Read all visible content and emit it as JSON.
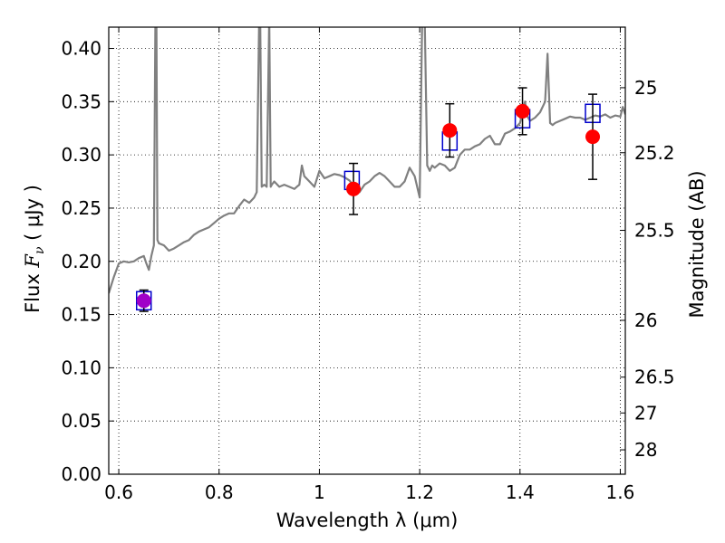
{
  "chart_data": {
    "type": "scatter",
    "xlabel": "Wavelength  λ (μm)",
    "ylabel": "Flux  F_ν  ( μJy )",
    "ylabel_parts": {
      "prefix": "Flux  ",
      "symbol": "F",
      "subscript": "ν",
      "unit": "( μJy )"
    },
    "y2label": "Magnitude (AB)",
    "xlim": [
      0.58,
      1.61
    ],
    "ylim": [
      0.0,
      0.42
    ],
    "grid": true,
    "grid_style": "dotted",
    "x_ticks": [
      {
        "value": 0.6,
        "label": "0.6"
      },
      {
        "value": 0.8,
        "label": "0.8"
      },
      {
        "value": 1.0,
        "label": "1"
      },
      {
        "value": 1.2,
        "label": "1.2"
      },
      {
        "value": 1.4,
        "label": "1.4"
      },
      {
        "value": 1.6,
        "label": "1.6"
      }
    ],
    "y_ticks": [
      {
        "value": 0.0,
        "label": "0.00"
      },
      {
        "value": 0.05,
        "label": "0.05"
      },
      {
        "value": 0.1,
        "label": "0.10"
      },
      {
        "value": 0.15,
        "label": "0.15"
      },
      {
        "value": 0.2,
        "label": "0.20"
      },
      {
        "value": 0.25,
        "label": "0.25"
      },
      {
        "value": 0.3,
        "label": "0.30"
      },
      {
        "value": 0.35,
        "label": "0.35"
      },
      {
        "value": 0.4,
        "label": "0.40"
      }
    ],
    "y2_ticks": [
      {
        "value": 25,
        "label": "25"
      },
      {
        "value": 25.2,
        "label": "25.2"
      },
      {
        "value": 25.5,
        "label": "25.5"
      },
      {
        "value": 26,
        "label": "26"
      },
      {
        "value": 26.5,
        "label": "26.5"
      },
      {
        "value": 27,
        "label": "27"
      },
      {
        "value": 28,
        "label": "28"
      }
    ],
    "series": [
      {
        "kind": "line",
        "color": "#808080",
        "x": [
          0.58,
          0.59,
          0.6,
          0.61,
          0.62,
          0.63,
          0.64,
          0.65,
          0.655,
          0.66,
          0.665,
          0.67,
          0.673,
          0.675,
          0.677,
          0.68,
          0.69,
          0.7,
          0.71,
          0.72,
          0.73,
          0.74,
          0.75,
          0.76,
          0.77,
          0.78,
          0.79,
          0.8,
          0.81,
          0.82,
          0.83,
          0.84,
          0.85,
          0.86,
          0.87,
          0.875,
          0.88,
          0.882,
          0.885,
          0.89,
          0.895,
          0.9,
          0.903,
          0.905,
          0.91,
          0.92,
          0.93,
          0.94,
          0.95,
          0.955,
          0.96,
          0.965,
          0.97,
          0.98,
          0.99,
          1.0,
          1.01,
          1.02,
          1.03,
          1.04,
          1.05,
          1.06,
          1.07,
          1.08,
          1.09,
          1.1,
          1.11,
          1.12,
          1.13,
          1.14,
          1.15,
          1.16,
          1.17,
          1.18,
          1.19,
          1.2,
          1.205,
          1.21,
          1.215,
          1.22,
          1.225,
          1.23,
          1.24,
          1.25,
          1.26,
          1.27,
          1.28,
          1.29,
          1.3,
          1.31,
          1.32,
          1.33,
          1.34,
          1.35,
          1.36,
          1.37,
          1.38,
          1.39,
          1.4,
          1.41,
          1.415,
          1.42,
          1.43,
          1.44,
          1.45,
          1.455,
          1.46,
          1.465,
          1.47,
          1.48,
          1.49,
          1.5,
          1.51,
          1.52,
          1.53,
          1.54,
          1.55,
          1.56,
          1.57,
          1.58,
          1.59,
          1.6,
          1.605,
          1.61
        ],
        "y": [
          0.17,
          0.185,
          0.198,
          0.2,
          0.199,
          0.2,
          0.203,
          0.205,
          0.198,
          0.192,
          0.205,
          0.215,
          0.43,
          0.43,
          0.22,
          0.217,
          0.215,
          0.21,
          0.212,
          0.215,
          0.218,
          0.22,
          0.225,
          0.228,
          0.23,
          0.232,
          0.236,
          0.24,
          0.243,
          0.245,
          0.245,
          0.252,
          0.258,
          0.255,
          0.26,
          0.265,
          0.43,
          0.43,
          0.27,
          0.272,
          0.27,
          0.43,
          0.27,
          0.272,
          0.275,
          0.27,
          0.272,
          0.27,
          0.268,
          0.27,
          0.272,
          0.29,
          0.28,
          0.275,
          0.27,
          0.285,
          0.278,
          0.28,
          0.282,
          0.281,
          0.279,
          0.276,
          0.27,
          0.265,
          0.272,
          0.275,
          0.28,
          0.283,
          0.28,
          0.275,
          0.27,
          0.27,
          0.275,
          0.288,
          0.28,
          0.26,
          0.43,
          0.43,
          0.29,
          0.285,
          0.29,
          0.288,
          0.292,
          0.29,
          0.285,
          0.288,
          0.3,
          0.305,
          0.305,
          0.308,
          0.31,
          0.315,
          0.318,
          0.31,
          0.31,
          0.32,
          0.322,
          0.325,
          0.33,
          0.35,
          0.336,
          0.332,
          0.335,
          0.34,
          0.35,
          0.395,
          0.33,
          0.328,
          0.33,
          0.332,
          0.334,
          0.336,
          0.335,
          0.335,
          0.333,
          0.335,
          0.337,
          0.336,
          0.338,
          0.335,
          0.337,
          0.336,
          0.345,
          0.338
        ]
      },
      {
        "kind": "model_boxes",
        "color": "#0000cc",
        "x": [
          0.65,
          1.065,
          1.26,
          1.405,
          1.545
        ],
        "y": [
          0.163,
          0.276,
          0.313,
          0.334,
          0.339
        ]
      },
      {
        "kind": "observed_points",
        "color": "#ff0000",
        "first_point_color": "#a000c8",
        "x": [
          0.65,
          1.068,
          1.26,
          1.405,
          1.545
        ],
        "y": [
          0.163,
          0.268,
          0.323,
          0.341,
          0.317
        ],
        "yerr": [
          0.01,
          0.024,
          0.025,
          0.022,
          0.04
        ]
      }
    ]
  }
}
